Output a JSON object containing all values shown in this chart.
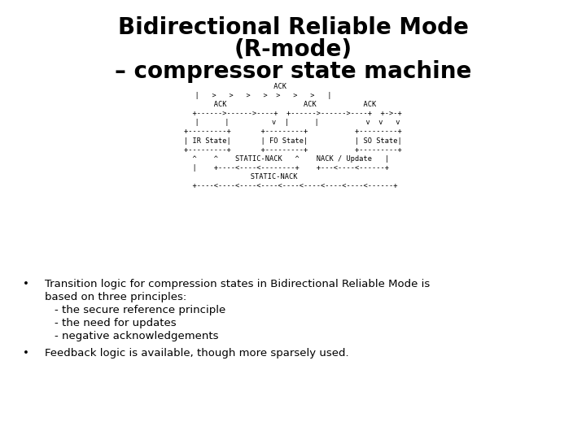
{
  "title_line1": "Bidirectional Reliable Mode",
  "title_line2": "(R-mode)",
  "title_line3": "– compressor state machine",
  "title_fontsize": 20,
  "bg_color": "#ffffff",
  "diagram_font": "monospace",
  "diagram_fontsize": 6.2,
  "diagram": [
    "                     ACK                           ",
    "  |   >   >   >   >  >   >   >   |                ",
    "       ACK                  ACK           ACK      ",
    "  +------>------>----+  +------>------>----+  +->-+",
    "  |      |          v  |      |           v  v   v",
    "+---------+       +---------+           +---------+",
    "| IR State|       | FO State|           | SO State|",
    "+---------+       +---------+           +---------+",
    "  ^    ^    STATIC-NACK   ^    NACK / Update   |   ",
    "  |    +----<----<--------+    +---<----<------+   ",
    "               STATIC-NACK                        ",
    "  +----<----<----<----<----<----<----<----<------+ "
  ],
  "bullet1_line1": "Transition logic for compression states in Bidirectional Reliable Mode is",
  "bullet1_line2": "based on three principles:",
  "bullet1_line3": "- the secure reference principle",
  "bullet1_line4": "- the need for updates",
  "bullet1_line5": "- negative acknowledgements",
  "bullet2": "Feedback logic is available, though more sparsely used.",
  "bullet_fontsize": 9.5,
  "text_color": "#000000"
}
